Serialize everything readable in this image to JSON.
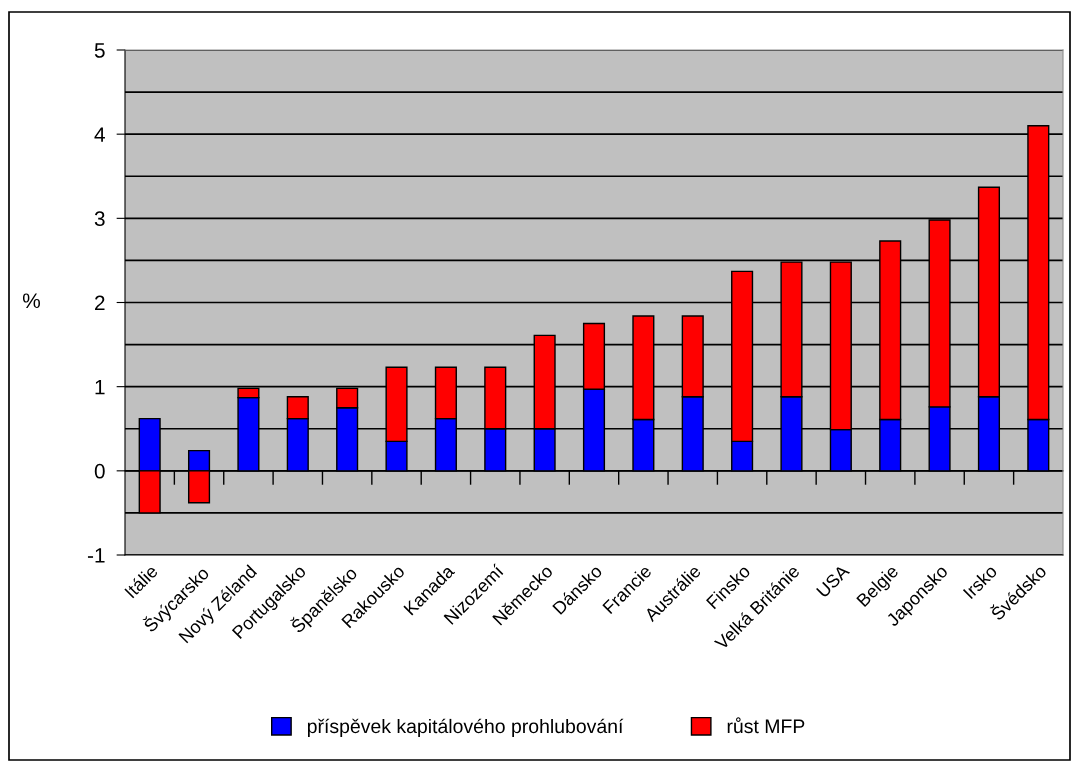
{
  "chart_data": {
    "type": "bar",
    "stacked": true,
    "categories": [
      "Itálie",
      "Švýcarsko",
      "Nový Zéland",
      "Portugalsko",
      "Španělsko",
      "Rakousko",
      "Kanada",
      "Nizozemí",
      "Německo",
      "Dánsko",
      "Francie",
      "Austrálie",
      "Finsko",
      "Velká Británie",
      "USA",
      "Belgie",
      "Japonsko",
      "Irsko",
      "Švédsko"
    ],
    "series": [
      {
        "name": "příspěvek kapitálového prohlubování",
        "color": "#0000ff",
        "values": [
          0.62,
          0.24,
          0.87,
          0.62,
          0.75,
          0.35,
          0.62,
          0.5,
          0.5,
          0.97,
          0.61,
          0.88,
          0.35,
          0.88,
          0.49,
          0.61,
          0.76,
          0.88,
          0.61
        ]
      },
      {
        "name": "růst MFP",
        "color": "#ff0000",
        "values": [
          -0.5,
          -0.38,
          0.11,
          0.26,
          0.23,
          0.88,
          0.61,
          0.73,
          1.11,
          0.78,
          1.23,
          0.96,
          2.02,
          1.6,
          1.99,
          2.12,
          2.22,
          2.49,
          3.49
        ]
      }
    ],
    "ylabel": "%",
    "ylim": [
      -1,
      5
    ],
    "yticks": [
      -1,
      {
        "value": -0.5,
        "label": null
      },
      0,
      {
        "value": 0.5,
        "label": null
      },
      1,
      {
        "value": 1.5,
        "label": null
      },
      2,
      {
        "value": 2.5,
        "label": null
      },
      3,
      {
        "value": 3.5,
        "label": null
      },
      4,
      {
        "value": 4.5,
        "label": null
      },
      5
    ],
    "grid": "y",
    "legend": "bottom"
  }
}
